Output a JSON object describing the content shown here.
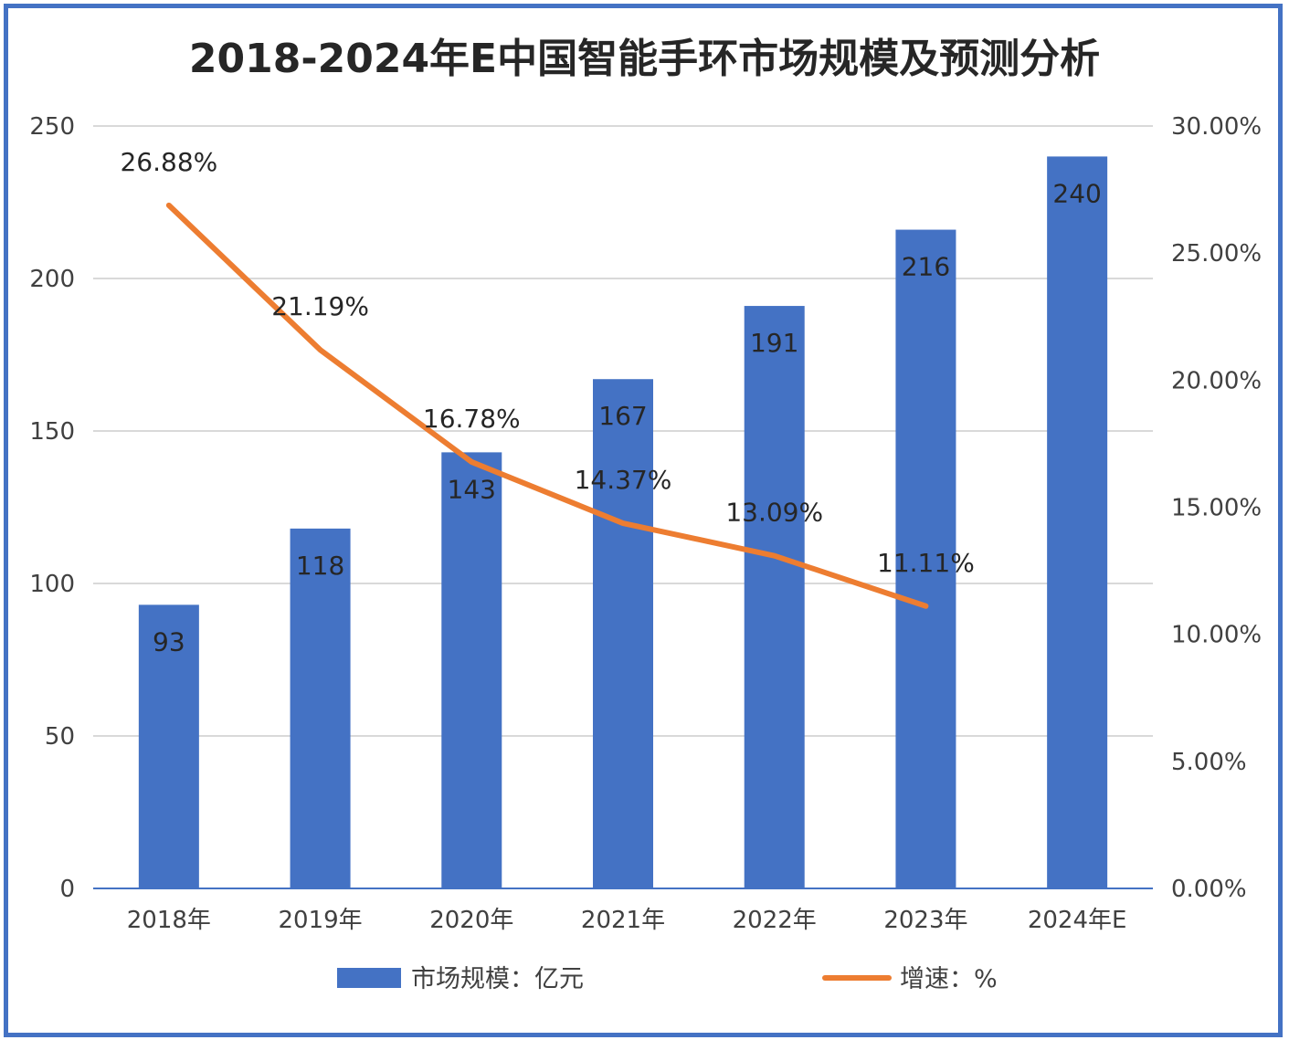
{
  "chart_data": {
    "type": "bar+line",
    "title": "2018-2024年E中国智能手环市场规模及预测分析",
    "categories": [
      "2018年",
      "2019年",
      "2020年",
      "2021年",
      "2022年",
      "2023年",
      "2024年E"
    ],
    "series": [
      {
        "name": "市场规模：亿元",
        "type": "bar",
        "axis": "left",
        "color": "#4472c4",
        "values": [
          93,
          118,
          143,
          167,
          191,
          216,
          240
        ],
        "labels": [
          "93",
          "118",
          "143",
          "167",
          "191",
          "216",
          "240"
        ]
      },
      {
        "name": "增速：%",
        "type": "line",
        "axis": "right",
        "color": "#ed7d31",
        "values": [
          26.88,
          21.19,
          16.78,
          14.37,
          13.09,
          11.11,
          null
        ],
        "labels": [
          "26.88%",
          "21.19%",
          "16.78%",
          "14.37%",
          "13.09%",
          "11.11%",
          ""
        ]
      }
    ],
    "y_left": {
      "min": 0,
      "max": 250,
      "ticks": [
        "0",
        "50",
        "100",
        "150",
        "200",
        "250"
      ]
    },
    "y_right": {
      "min": 0,
      "max": 30,
      "ticks": [
        "0.00%",
        "5.00%",
        "10.00%",
        "15.00%",
        "20.00%",
        "25.00%",
        "30.00%"
      ]
    },
    "grid": true,
    "legend_position": "bottom"
  },
  "colors": {
    "frame": "#4472c4",
    "grid": "#d9d9d9",
    "axis": "#4472c4"
  }
}
